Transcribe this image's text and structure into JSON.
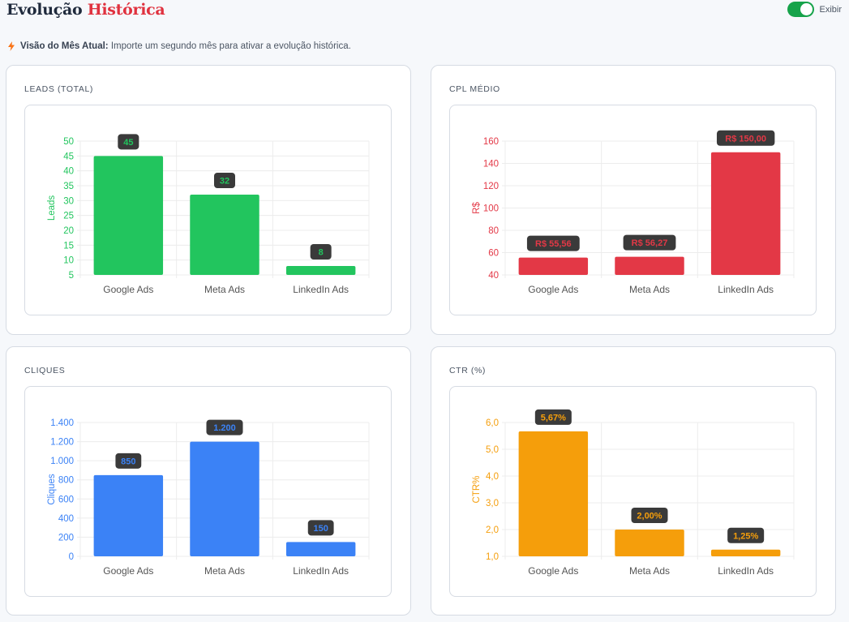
{
  "header": {
    "title_main": "Evolução",
    "title_accent": "Histórica",
    "toggle_label": "Exibir",
    "toggle_on": true
  },
  "notice": {
    "bold": "Visão do Mês Atual:",
    "text": "Importe um segundo mês para ativar a evolução histórica."
  },
  "colors": {
    "leads": "#22c55e",
    "cpl": "#e33846",
    "cliques": "#3b82f6",
    "ctr": "#f59e0b",
    "toggle": "#16a34a",
    "accent": "#e0323f"
  },
  "chart_data": [
    {
      "type": "bar",
      "title": "LEADS (TOTAL)",
      "categories": [
        "Google Ads",
        "Meta Ads",
        "LinkedIn Ads"
      ],
      "values": [
        45,
        32,
        8
      ],
      "value_labels": [
        "45",
        "32",
        "8"
      ],
      "ylabel": "Leads",
      "ylim": [
        5,
        50
      ],
      "yticks": [
        5,
        10,
        15,
        20,
        25,
        30,
        35,
        40,
        45,
        50
      ],
      "ytick_labels": [
        "5",
        "10",
        "15",
        "20",
        "25",
        "30",
        "35",
        "40",
        "45",
        "50"
      ],
      "color": "#22c55e",
      "grid": true
    },
    {
      "type": "bar",
      "title": "CPL MÉDIO",
      "categories": [
        "Google Ads",
        "Meta Ads",
        "LinkedIn Ads"
      ],
      "values": [
        55.56,
        56.27,
        150.0
      ],
      "value_labels": [
        "R$ 55,56",
        "R$ 56,27",
        "R$ 150,00"
      ],
      "ylabel": "R$",
      "ylim": [
        40,
        160
      ],
      "yticks": [
        40,
        60,
        80,
        100,
        120,
        140,
        160
      ],
      "ytick_labels": [
        "40",
        "60",
        "80",
        "100",
        "120",
        "140",
        "160"
      ],
      "color": "#e33846",
      "grid": true
    },
    {
      "type": "bar",
      "title": "CLIQUES",
      "categories": [
        "Google Ads",
        "Meta Ads",
        "LinkedIn Ads"
      ],
      "values": [
        850,
        1200,
        150
      ],
      "value_labels": [
        "850",
        "1.200",
        "150"
      ],
      "ylabel": "Cliques",
      "ylim": [
        0,
        1400
      ],
      "yticks": [
        0,
        200,
        400,
        600,
        800,
        1000,
        1200,
        1400
      ],
      "ytick_labels": [
        "0",
        "200",
        "400",
        "600",
        "800",
        "1.000",
        "1.200",
        "1.400"
      ],
      "color": "#3b82f6",
      "grid": true
    },
    {
      "type": "bar",
      "title": "CTR (%)",
      "categories": [
        "Google Ads",
        "Meta Ads",
        "LinkedIn Ads"
      ],
      "values": [
        5.67,
        2.0,
        1.25
      ],
      "value_labels": [
        "5,67%",
        "2,00%",
        "1,25%"
      ],
      "ylabel": "CTR%",
      "ylim": [
        1.0,
        6.0
      ],
      "yticks": [
        1.0,
        2.0,
        3.0,
        4.0,
        5.0,
        6.0
      ],
      "ytick_labels": [
        "1,0",
        "2,0",
        "3,0",
        "4,0",
        "5,0",
        "6,0"
      ],
      "color": "#f59e0b",
      "grid": true
    }
  ]
}
